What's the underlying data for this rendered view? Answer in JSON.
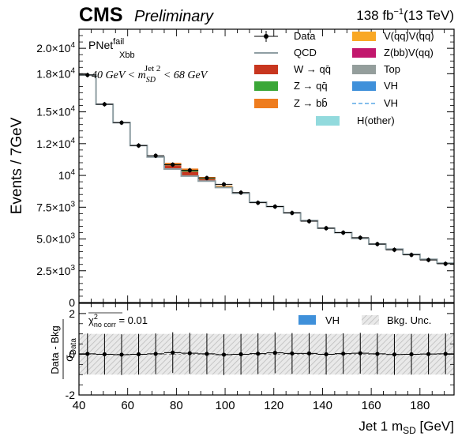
{
  "header": {
    "experiment": "CMS",
    "status": "Preliminary",
    "lumi_value": "138 fb",
    "lumi_exp": "−1",
    "energy": "(13 TeV)"
  },
  "annotations": {
    "region_base": "PNet",
    "region_sup": "fail",
    "region_sub": "Xbb",
    "mass_window_left": "40 GeV < m",
    "mass_window_sub": "SD",
    "mass_window_sup": "Jet 2",
    "mass_window_right": " < 68 GeV",
    "chi2_label": "χ",
    "chi2_sup": "2",
    "chi2_sub": "no corr",
    "chi2_value": " = 0.01"
  },
  "colors": {
    "qcd": "#8f9ea3",
    "wqq": "#c8361f",
    "zqq": "#3aa737",
    "zbb": "#ee7c1e",
    "vqqvqq": "#f9a825",
    "zbbvqq": "#c2176d",
    "top": "#949e9c",
    "vh": "#3f90da",
    "vh_dashed": "#5aa9e6",
    "hother": "#92dadd",
    "data": "#000000",
    "unc_hatch": "#bdbdbd"
  },
  "chart_data": [
    {
      "type": "histogram",
      "panel": "main",
      "xlim": [
        40,
        194
      ],
      "ylim": [
        0,
        21500
      ],
      "ylabel": "Events / 7GeV",
      "yticks": [
        0,
        2500,
        5000,
        7500,
        10000,
        12500,
        15000,
        18000,
        20000
      ],
      "yticklabels": [
        {
          "m": "0",
          "e": ""
        },
        {
          "m": "2.5×10",
          "e": "3"
        },
        {
          "m": "5.0×10",
          "e": "3"
        },
        {
          "m": "7.5×10",
          "e": "3"
        },
        {
          "m": "10",
          "e": "4"
        },
        {
          "m": "1.2×10",
          "e": "4"
        },
        {
          "m": "1.5×10",
          "e": "4"
        },
        {
          "m": "1.8×10",
          "e": "4"
        },
        {
          "m": "2.0×10",
          "e": "4"
        }
      ],
      "bin_edges": [
        40,
        47,
        54,
        61,
        68,
        75,
        82,
        89,
        96,
        103,
        110,
        117,
        124,
        131,
        138,
        145,
        152,
        159,
        166,
        173,
        180,
        187,
        194
      ],
      "qcd": [
        17900,
        15600,
        14150,
        12350,
        11450,
        10500,
        9950,
        9550,
        9050,
        8600,
        7900,
        7550,
        7050,
        6450,
        5850,
        5500,
        5050,
        4600,
        4200,
        3800,
        3400,
        3100
      ],
      "wqq": [
        0,
        0,
        0,
        0,
        0,
        300,
        350,
        150,
        50,
        0,
        0,
        0,
        0,
        0,
        0,
        0,
        0,
        0,
        0,
        0,
        0,
        0
      ],
      "zqq": [
        0,
        0,
        0,
        0,
        0,
        80,
        90,
        40,
        20,
        0,
        0,
        0,
        0,
        0,
        0,
        0,
        0,
        0,
        0,
        0,
        0,
        0
      ],
      "zbb": [
        0,
        0,
        0,
        0,
        0,
        110,
        150,
        140,
        80,
        0,
        0,
        0,
        0,
        0,
        0,
        0,
        0,
        0,
        0,
        0,
        0,
        0
      ],
      "data": {
        "x": [
          43.5,
          50.5,
          57.5,
          64.5,
          71.5,
          78.5,
          85.5,
          92.5,
          99.5,
          106.5,
          113.5,
          120.5,
          127.5,
          134.5,
          141.5,
          148.5,
          155.5,
          162.5,
          169.5,
          176.5,
          183.5,
          190.5
        ],
        "y": [
          17900,
          15600,
          14150,
          12350,
          11550,
          10850,
          10400,
          9800,
          9300,
          8650,
          7850,
          7550,
          7050,
          6400,
          5850,
          5500,
          5100,
          4600,
          4150,
          3750,
          3350,
          3050
        ]
      },
      "legend": {
        "placement": "top-right",
        "col1": [
          "Data",
          "QCD",
          "W → qq̄",
          "Z → qq̄",
          "Z → bb̄",
          "H(other)"
        ],
        "col2": [
          "V(qq)V(qq)",
          "Z(bb)V(qq)",
          "Top",
          "VH",
          "VH"
        ]
      }
    },
    {
      "type": "ratio",
      "panel": "bottom",
      "xlabel_main": "Jet 1 m",
      "xlabel_sub": "SD",
      "xlabel_unit": " [GeV]",
      "ylabel_num": "Data - Bkg",
      "ylabel_den": "σ",
      "ylabel_den_sub": "Data",
      "xlim": [
        40,
        194
      ],
      "ylim": [
        -2,
        2.5
      ],
      "yticks": [
        -2,
        0,
        2
      ],
      "xticks": [
        40,
        60,
        80,
        100,
        120,
        140,
        160,
        180
      ],
      "unc_band": [
        -1,
        1
      ],
      "x": [
        43.5,
        50.5,
        57.5,
        64.5,
        71.5,
        78.5,
        85.5,
        92.5,
        99.5,
        106.5,
        113.5,
        120.5,
        127.5,
        134.5,
        141.5,
        148.5,
        155.5,
        162.5,
        169.5,
        176.5,
        183.5,
        190.5
      ],
      "y": [
        0.02,
        0.0,
        -0.02,
        0.0,
        0.02,
        0.08,
        0.05,
        0.02,
        -0.02,
        0.0,
        0.03,
        0.07,
        0.04,
        0.04,
        0.0,
        0.03,
        0.05,
        0.02,
        -0.01,
        0.0,
        0.01,
        0.02
      ],
      "yerr": [
        1,
        1,
        1,
        1,
        1,
        1,
        1,
        1,
        1,
        1,
        1,
        1,
        1,
        1,
        1,
        1,
        1,
        1,
        1,
        1,
        1,
        1
      ],
      "legend": [
        "VH",
        "Bkg. Unc."
      ]
    }
  ]
}
